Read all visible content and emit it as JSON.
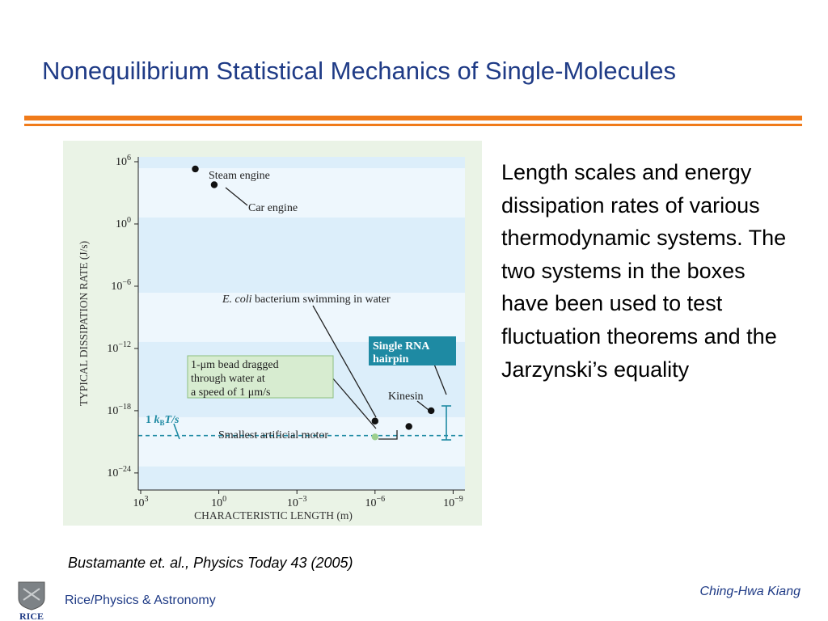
{
  "slide": {
    "title": "Nonequilibrium Statistical Mechanics of Single-Molecules",
    "description": "Length scales and energy dissipation rates of various thermodynamic systems.  The two systems in the boxes have been used to test fluctuation theorems and the Jarzynski’s equality",
    "citation": "Bustamante et. al., Physics Today 43 (2005)",
    "author": "Ching-Hwa Kiang",
    "department": "Rice/Physics & Astronomy",
    "logo_text": "RICE"
  },
  "colors": {
    "title": "#1f3b86",
    "rule": "#f07b1a",
    "panel": "#eaf3e6",
    "plot_bg": "#dceefa",
    "band_light": "#eef7fd",
    "teal": "#1e8aa3",
    "green_box": "#d7ecd0"
  },
  "chart_data": {
    "type": "scatter",
    "xlabel": "CHARACTERISTIC LENGTH (m)",
    "ylabel": "TYPICAL DISSIPATION RATE (J/s)",
    "x_scale": "log, reversed",
    "y_scale": "log",
    "x_ticks": [
      {
        "value": 1000,
        "base": "10",
        "exp": "3"
      },
      {
        "value": 1,
        "base": "10",
        "exp": "0"
      },
      {
        "value": 0.001,
        "base": "10",
        "exp": "−3"
      },
      {
        "value": 1e-06,
        "base": "10",
        "exp": "−6"
      },
      {
        "value": 1e-09,
        "base": "10",
        "exp": "−9"
      }
    ],
    "y_ticks": [
      {
        "value": 1000000.0,
        "base": "10",
        "exp": "6"
      },
      {
        "value": 1,
        "base": "10",
        "exp": "0"
      },
      {
        "value": 1e-06,
        "base": "10",
        "exp": "−6"
      },
      {
        "value": 1e-12,
        "base": "10",
        "exp": "−12"
      },
      {
        "value": 1e-18,
        "base": "10",
        "exp": "−18"
      },
      {
        "value": 1e-24,
        "base": "10",
        "exp": "−24"
      }
    ],
    "points": [
      {
        "name": "Steam engine",
        "x": 8.0,
        "y": 200000,
        "color": "#111111"
      },
      {
        "name": "Car engine",
        "x": 1.5,
        "y": 6000,
        "color": "#111111"
      },
      {
        "name": "E. coli bacterium swimming in water",
        "x": 1e-06,
        "y": 1e-19,
        "color": "#111111"
      },
      {
        "name": "1-μm bead dragged through water at a speed of 1 μm/s",
        "x": 1e-06,
        "y": 3e-21,
        "color": "#9ccf8e"
      },
      {
        "name": "Smallest artificial motor",
        "x": 5e-08,
        "y": 3e-20,
        "color": "#111111"
      },
      {
        "name": "Kinesin",
        "x": 7e-09,
        "y": 1e-18,
        "color": "#111111"
      }
    ],
    "kT_line": {
      "label_prefix": "1 ",
      "label_k": "k",
      "label_sub": "B",
      "label_suffix": "T/s",
      "y": 4e-21
    },
    "labels": {
      "steam": "Steam engine",
      "car": "Car engine",
      "ecoli_italic": "E. coli",
      "ecoli_rest": " bacterium swimming in water",
      "bead_1": "1-μm bead dragged",
      "bead_2": "through water at",
      "bead_3": "a speed of 1 μm/s",
      "rna_1": "Single RNA",
      "rna_2": "hairpin",
      "kinesin": "Kinesin",
      "motor": "Smallest artificial motor"
    }
  }
}
